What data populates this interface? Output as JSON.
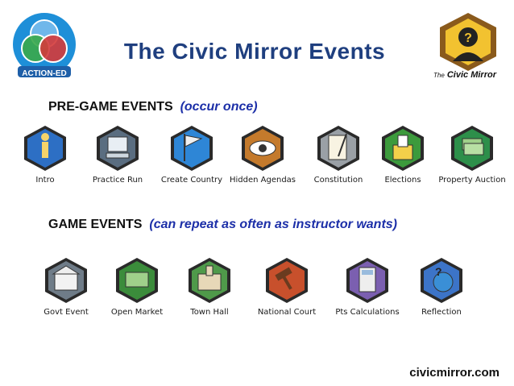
{
  "header": {
    "title": "The Civic Mirror Events",
    "left_logo_text": "ACTION-ED",
    "right_logo_text_prefix": "The",
    "right_logo_text": "Civic Mirror"
  },
  "pre_game": {
    "heading": "PRE-GAME EVENTS",
    "note": "(occur once)",
    "events": [
      {
        "label": "Intro",
        "icon": "info-i-icon",
        "color": "#2d6fc4"
      },
      {
        "label": "Practice Run",
        "icon": "computer-icon",
        "color": "#5a6d80"
      },
      {
        "label": "Create Country",
        "icon": "flag-icon",
        "color": "#2e86d6"
      },
      {
        "label": "Hidden Agendas",
        "icon": "eye-icon",
        "color": "#c47a2c"
      },
      {
        "label": "Constitution",
        "icon": "scroll-quill-icon",
        "color": "#9aa0a6"
      },
      {
        "label": "Elections",
        "icon": "ballot-box-icon",
        "color": "#3c9a3c"
      },
      {
        "label": "Property Auction",
        "icon": "money-hand-icon",
        "color": "#2d8f4a"
      }
    ]
  },
  "game": {
    "heading": "GAME EVENTS",
    "note": "(can repeat as often as instructor wants)",
    "events": [
      {
        "label": "Govt Event",
        "icon": "government-building-icon",
        "color": "#6f7c88"
      },
      {
        "label": "Open Market",
        "icon": "money-exchange-icon",
        "color": "#3b8c3b"
      },
      {
        "label": "Town Hall",
        "icon": "town-hall-icon",
        "color": "#4f9a4a"
      },
      {
        "label": "National Court",
        "icon": "gavel-icon",
        "color": "#c8502c"
      },
      {
        "label": "Pts Calculations",
        "icon": "calculator-icon",
        "color": "#7b5fb0"
      },
      {
        "label": "Reflection",
        "icon": "globe-question-icon",
        "color": "#3c74c8"
      }
    ]
  },
  "footer": {
    "url": "civicmirror.com"
  }
}
